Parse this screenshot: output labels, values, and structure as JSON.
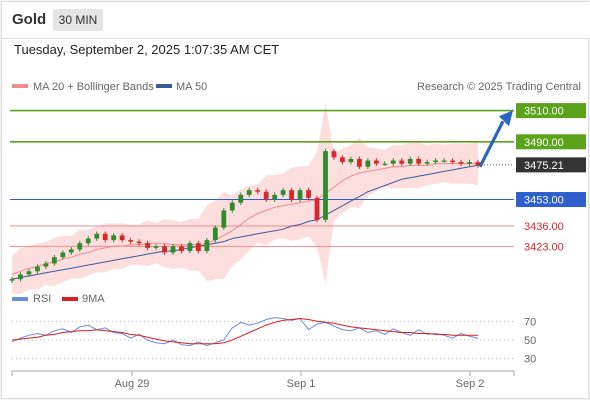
{
  "header": {
    "symbol": "Gold",
    "timeframe": "30 MIN"
  },
  "timestamp": "Tuesday, September 2, 2025 1:07:35 AM CET",
  "legend": {
    "ma20": "MA 20 + Bollinger Bands",
    "ma50": "MA 50",
    "research": "Research © 2025 Trading Central"
  },
  "rsi_legend": {
    "rsi": "RSI",
    "ma": "9MA"
  },
  "colors": {
    "resistance": "#5aa31a",
    "support": "#f08c8c",
    "pivot": "#2e5fcc",
    "last": "#333333",
    "candle_up": "#2e8b2e",
    "candle_down": "#d42a2a",
    "bands": "#f9c3c3",
    "ma20": "#f28b8b",
    "ma50": "#3c5a99",
    "rsi": "#6a8be0",
    "rsi_ma": "#d81f1f"
  },
  "chart_data": {
    "type": "line",
    "title": "",
    "xlabel": "",
    "ylabel": "",
    "x_ticks": [
      "Aug 29",
      "Sep 1",
      "Sep 2"
    ],
    "ylim": [
      3395,
      3520
    ],
    "levels": [
      {
        "value": 3510.0,
        "label": "3510.00",
        "kind": "resistance"
      },
      {
        "value": 3490.0,
        "label": "3490.00",
        "kind": "resistance"
      },
      {
        "value": 3475.21,
        "label": "3475.21",
        "kind": "last"
      },
      {
        "value": 3453.0,
        "label": "3453.00",
        "kind": "pivot"
      },
      {
        "value": 3436.0,
        "label": "3436.00",
        "kind": "support"
      },
      {
        "value": 3423.0,
        "label": "3423.00",
        "kind": "support"
      }
    ],
    "projection": {
      "from": 3474,
      "to": 3507
    },
    "series": [
      {
        "name": "Price",
        "values": [
          3402,
          3405,
          3407,
          3410,
          3412,
          3416,
          3419,
          3421,
          3425,
          3428,
          3431,
          3427,
          3430,
          3427,
          3426,
          3425,
          3422,
          3423,
          3419,
          3423,
          3420,
          3425,
          3420,
          3427,
          3435,
          3446,
          3451,
          3456,
          3459,
          3458,
          3453,
          3456,
          3459,
          3453,
          3459,
          3454,
          3440,
          3484,
          3480,
          3477,
          3479,
          3474,
          3478,
          3476,
          3476,
          3478,
          3476,
          3479,
          3476,
          3477,
          3478,
          3478,
          3477,
          3476,
          3477,
          3475
        ]
      },
      {
        "name": "MA 20",
        "values": [
          3405,
          3407,
          3409,
          3410,
          3412,
          3413,
          3415,
          3416,
          3418,
          3419,
          3421,
          3422,
          3423,
          3423,
          3424,
          3424,
          3425,
          3425,
          3425,
          3424,
          3424,
          3424,
          3424,
          3425,
          3427,
          3430,
          3433,
          3437,
          3441,
          3444,
          3446,
          3448,
          3449,
          3450,
          3451,
          3452,
          3453,
          3457,
          3461,
          3465,
          3468,
          3470,
          3471,
          3472,
          3473,
          3474,
          3474,
          3475,
          3475,
          3475,
          3476,
          3476,
          3476,
          3476,
          3476,
          3476
        ]
      },
      {
        "name": "MA 50",
        "values": [
          3402,
          3403,
          3404,
          3405,
          3406,
          3407,
          3408,
          3409,
          3410,
          3411,
          3412,
          3413,
          3414,
          3415,
          3416,
          3417,
          3418,
          3419,
          3420,
          3420,
          3421,
          3422,
          3423,
          3424,
          3425,
          3426,
          3428,
          3429,
          3430,
          3431,
          3432,
          3433,
          3434,
          3436,
          3437,
          3439,
          3440,
          3443,
          3446,
          3449,
          3452,
          3455,
          3458,
          3460,
          3462,
          3464,
          3466,
          3467,
          3468,
          3469,
          3470,
          3471,
          3472,
          3473,
          3474,
          3475
        ]
      }
    ],
    "rsi": {
      "ylim": [
        20,
        80
      ],
      "ticks": [
        70,
        50,
        30
      ],
      "values": [
        48,
        52,
        55,
        57,
        55,
        60,
        62,
        58,
        64,
        66,
        61,
        63,
        58,
        57,
        52,
        56,
        50,
        47,
        46,
        50,
        45,
        44,
        48,
        44,
        47,
        50,
        63,
        69,
        66,
        68,
        72,
        74,
        73,
        71,
        73,
        61,
        67,
        69,
        65,
        61,
        60,
        63,
        58,
        60,
        56,
        62,
        58,
        55,
        61,
        56,
        57,
        55,
        52,
        57,
        54,
        52
      ],
      "ma": [
        50,
        51,
        52,
        53,
        55,
        56,
        58,
        59,
        60,
        60,
        61,
        60,
        59,
        58,
        56,
        55,
        53,
        51,
        49,
        48,
        47,
        46,
        46,
        46,
        46,
        47,
        50,
        54,
        58,
        62,
        66,
        69,
        71,
        72,
        73,
        72,
        70,
        69,
        68,
        66,
        64,
        63,
        62,
        61,
        60,
        59,
        58,
        58,
        57,
        57,
        56,
        56,
        55,
        55,
        55,
        55
      ]
    }
  }
}
